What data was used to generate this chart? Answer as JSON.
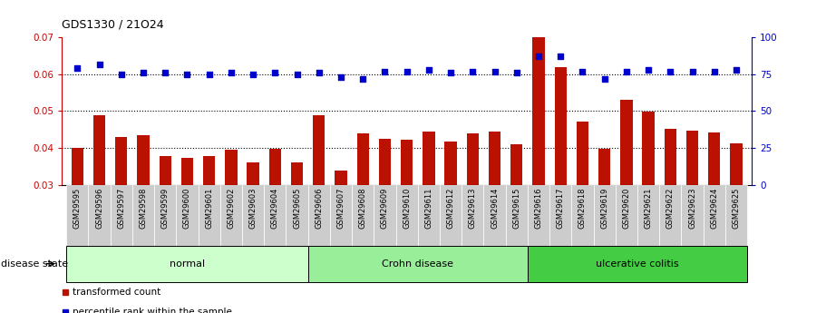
{
  "title": "GDS1330 / 21O24",
  "samples": [
    "GSM29595",
    "GSM29596",
    "GSM29597",
    "GSM29598",
    "GSM29599",
    "GSM29600",
    "GSM29601",
    "GSM29602",
    "GSM29603",
    "GSM29604",
    "GSM29605",
    "GSM29606",
    "GSM29607",
    "GSM29608",
    "GSM29609",
    "GSM29610",
    "GSM29611",
    "GSM29612",
    "GSM29613",
    "GSM29614",
    "GSM29615",
    "GSM29616",
    "GSM29617",
    "GSM29618",
    "GSM29619",
    "GSM29620",
    "GSM29621",
    "GSM29622",
    "GSM29623",
    "GSM29624",
    "GSM29625"
  ],
  "bar_values": [
    0.04,
    0.0488,
    0.043,
    0.0435,
    0.0378,
    0.0372,
    0.0378,
    0.0395,
    0.036,
    0.0398,
    0.036,
    0.0488,
    0.0338,
    0.044,
    0.0425,
    0.0422,
    0.0445,
    0.0418,
    0.044,
    0.0445,
    0.041,
    0.07,
    0.062,
    0.0472,
    0.0398,
    0.053,
    0.0498,
    0.0452,
    0.0448,
    0.0442,
    0.0412
  ],
  "percentile_values": [
    79,
    82,
    75,
    76,
    76,
    75,
    75,
    76,
    75,
    76,
    75,
    76,
    73,
    72,
    77,
    77,
    78,
    76,
    77,
    77,
    76,
    87,
    87,
    77,
    72,
    77,
    78,
    77,
    77,
    77,
    78
  ],
  "groups": [
    {
      "label": "normal",
      "start": 0,
      "end": 10,
      "color": "#ccffcc"
    },
    {
      "label": "Crohn disease",
      "start": 11,
      "end": 20,
      "color": "#99ee99"
    },
    {
      "label": "ulcerative colitis",
      "start": 21,
      "end": 30,
      "color": "#44cc44"
    }
  ],
  "bar_color": "#bb1100",
  "dot_color": "#0000cc",
  "ylim_left": [
    0.03,
    0.07
  ],
  "ylim_right": [
    0,
    100
  ],
  "yticks_left": [
    0.03,
    0.04,
    0.05,
    0.06,
    0.07
  ],
  "yticks_right": [
    0,
    25,
    50,
    75,
    100
  ],
  "dotted_line_values": [
    0.04,
    0.05,
    0.06
  ],
  "legend_bar_label": "transformed count",
  "legend_dot_label": "percentile rank within the sample",
  "disease_state_label": "disease state"
}
